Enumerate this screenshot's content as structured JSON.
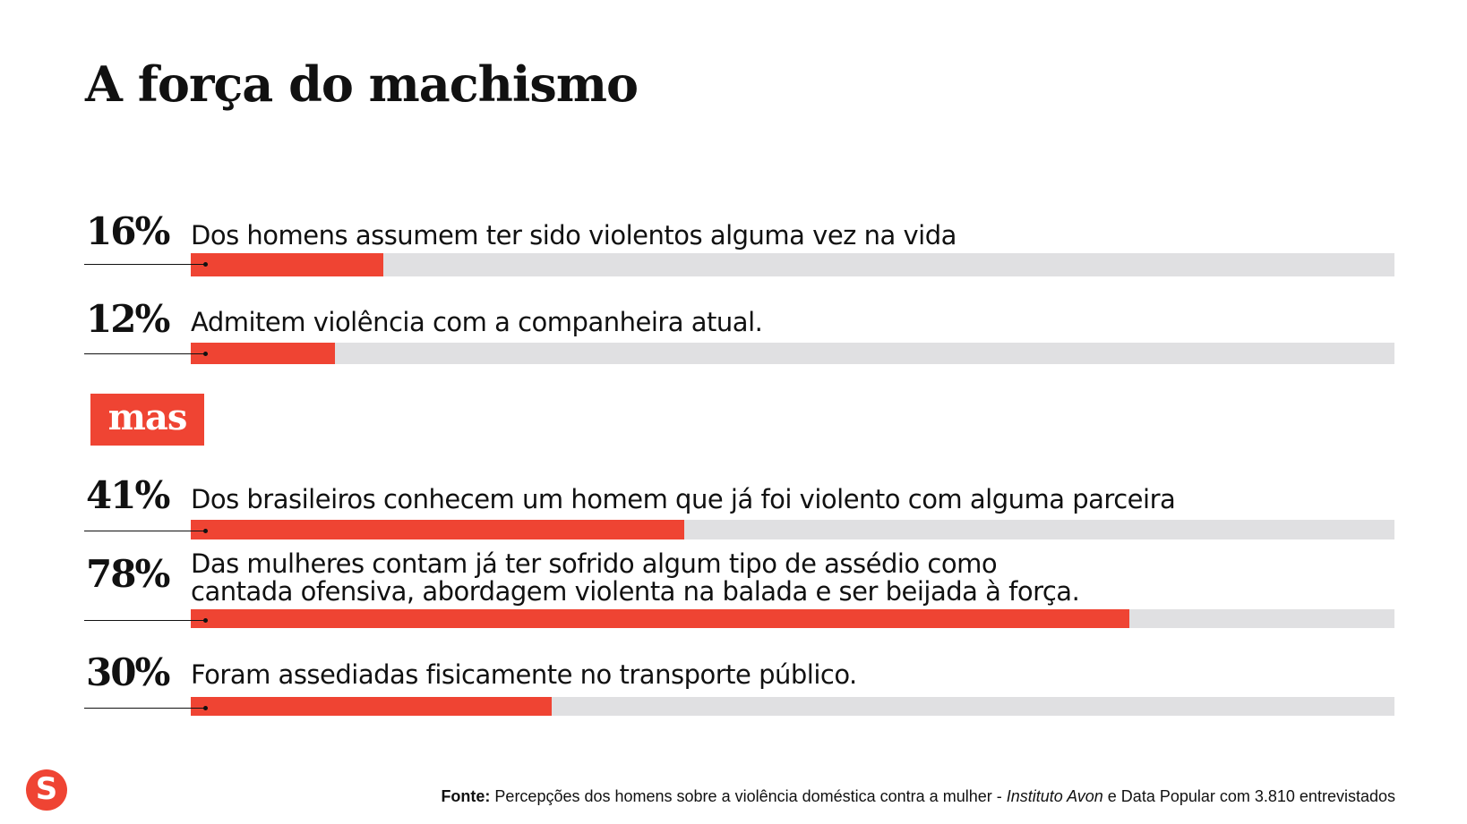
{
  "chart_data": {
    "type": "bar",
    "orientation": "horizontal",
    "title": "A força do machismo",
    "separator_label": "mas",
    "xlim": [
      0,
      100
    ],
    "unit": "%",
    "categories": [
      "Dos homens assumem ter sido violentos alguma vez na vida",
      "Admitem violência com a companheira atual.",
      "Dos brasileiros conhecem um homem que já foi violento com alguma parceira",
      "Das mulheres contam já ter sofrido algum tipo de assédio como cantada ofensiva, abordagem violenta na balada e ser beijada à força.",
      "Foram assediadas fisicamente no transporte público."
    ],
    "values": [
      16,
      12,
      41,
      78,
      30
    ],
    "value_labels": [
      "16%",
      "12%",
      "41%",
      "78%",
      "30%"
    ],
    "colors": {
      "fill": "#ef4433",
      "track": "#e0e0e2"
    }
  },
  "source": {
    "prefix": "Fonte:",
    "text1": " Percepções dos homens sobre a violência doméstica contra a mulher - ",
    "italic": "Instituto Avon",
    "text2": " e Data Popular com 3.810 entrevistados"
  },
  "logo": {
    "letter": "S"
  }
}
